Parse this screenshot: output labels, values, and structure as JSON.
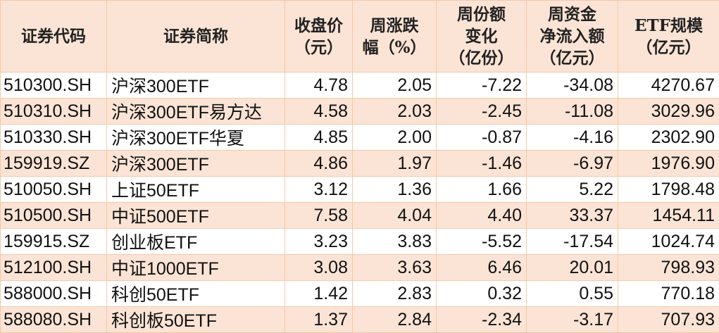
{
  "headers": [
    {
      "lines": [
        "证券代码"
      ]
    },
    {
      "lines": [
        "证券简称"
      ]
    },
    {
      "lines": [
        "收盘价",
        "（元）"
      ]
    },
    {
      "lines": [
        "周涨跌",
        "幅（%）"
      ]
    },
    {
      "lines": [
        "周份额",
        "变化",
        "（亿份）"
      ]
    },
    {
      "lines": [
        "周资金",
        "净流入额",
        "（亿元）"
      ]
    },
    {
      "lines": [
        "ETF规模",
        "（亿元）"
      ]
    }
  ],
  "rows": [
    [
      "510300.SH",
      "沪深300ETF",
      "4.78",
      "2.05",
      "-7.22",
      "-34.08",
      "4270.67"
    ],
    [
      "510310.SH",
      "沪深300ETF易方达",
      "4.58",
      "2.03",
      "-2.45",
      "-11.08",
      "3029.96"
    ],
    [
      "510330.SH",
      "沪深300ETF华夏",
      "4.85",
      "2.00",
      "-0.87",
      "-4.16",
      "2302.90"
    ],
    [
      "159919.SZ",
      "沪深300ETF",
      "4.86",
      "1.97",
      "-1.46",
      "-6.97",
      "1976.90"
    ],
    [
      "510050.SH",
      "上证50ETF",
      "3.12",
      "1.36",
      "1.66",
      "5.22",
      "1798.48"
    ],
    [
      "510500.SH",
      "中证500ETF",
      "7.58",
      "4.04",
      "4.40",
      "33.37",
      "1454.11"
    ],
    [
      "159915.SZ",
      "创业板ETF",
      "3.23",
      "3.83",
      "-5.52",
      "-17.54",
      "1024.74"
    ],
    [
      "512100.SH",
      "中证1000ETF",
      "3.08",
      "3.63",
      "6.46",
      "20.01",
      "798.93"
    ],
    [
      "588000.SH",
      "科创50ETF",
      "1.42",
      "2.83",
      "0.32",
      "0.55",
      "770.18"
    ],
    [
      "588080.SH",
      "科创板50ETF",
      "1.37",
      "2.84",
      "-2.34",
      "-3.17",
      "707.93"
    ]
  ],
  "colors": {
    "header_bg": "#fbe4d5",
    "alt_row_bg": "#fbe4d5",
    "border": "#f4c9a8"
  }
}
